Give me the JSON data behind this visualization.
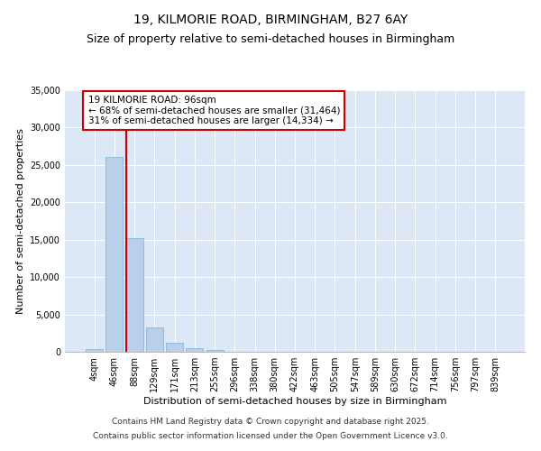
{
  "title1": "19, KILMORIE ROAD, BIRMINGHAM, B27 6AY",
  "title2": "Size of property relative to semi-detached houses in Birmingham",
  "xlabel": "Distribution of semi-detached houses by size in Birmingham",
  "ylabel": "Number of semi-detached properties",
  "categories": [
    "4sqm",
    "46sqm",
    "88sqm",
    "129sqm",
    "171sqm",
    "213sqm",
    "255sqm",
    "296sqm",
    "338sqm",
    "380sqm",
    "422sqm",
    "463sqm",
    "505sqm",
    "547sqm",
    "589sqm",
    "630sqm",
    "672sqm",
    "714sqm",
    "756sqm",
    "797sqm",
    "839sqm"
  ],
  "values": [
    350,
    26100,
    15200,
    3300,
    1250,
    430,
    200,
    50,
    0,
    0,
    0,
    0,
    0,
    0,
    0,
    0,
    0,
    0,
    0,
    0,
    0
  ],
  "bar_color": "#b8d0ea",
  "bar_edge_color": "#7aafd4",
  "vline_color": "#cc0000",
  "annotation_title": "19 KILMORIE ROAD: 96sqm",
  "annotation_line1": "← 68% of semi-detached houses are smaller (31,464)",
  "annotation_line2": "31% of semi-detached houses are larger (14,334) →",
  "annotation_box_color": "#ffffff",
  "annotation_box_edge": "#cc0000",
  "ylim": [
    0,
    35000
  ],
  "yticks": [
    0,
    5000,
    10000,
    15000,
    20000,
    25000,
    30000,
    35000
  ],
  "background_color": "#dce8f5",
  "footer1": "Contains HM Land Registry data © Crown copyright and database right 2025.",
  "footer2": "Contains public sector information licensed under the Open Government Licence v3.0.",
  "title_fontsize": 10,
  "subtitle_fontsize": 9,
  "axis_label_fontsize": 8,
  "tick_fontsize": 7,
  "footer_fontsize": 6.5,
  "annotation_fontsize": 7.5
}
